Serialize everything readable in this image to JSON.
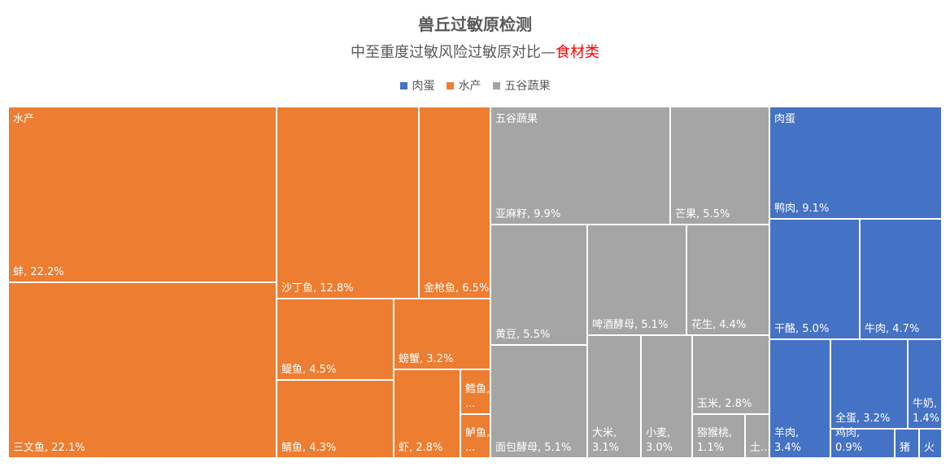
{
  "chart_data": {
    "type": "treemap",
    "title": "兽丘过敏原检测",
    "subtitle_main": "中至重度过敏风险过敏原对比—",
    "subtitle_accent": "食材类",
    "legend": [
      "肉蛋",
      "水产",
      "五谷蔬果"
    ],
    "legend_position": "top-center",
    "colors": {
      "肉蛋": "#4472C4",
      "水产": "#ED7D31",
      "五谷蔬果": "#A5A5A5"
    },
    "groups": [
      {
        "name": "水产",
        "items": [
          {
            "name": "蚌",
            "value": 22.2,
            "label": "蚌, 22.2%"
          },
          {
            "name": "三文鱼",
            "value": 22.1,
            "label": "三文鱼, 22.1%"
          },
          {
            "name": "沙丁鱼",
            "value": 12.8,
            "label": "沙丁鱼, 12.8%"
          },
          {
            "name": "金枪鱼",
            "value": 6.5,
            "label": "金枪鱼, 6.5%"
          },
          {
            "name": "鳀鱼",
            "value": 4.5,
            "label": "鳀鱼, 4.5%"
          },
          {
            "name": "鲭鱼",
            "value": 4.3,
            "label": "鲭鱼, 4.3%"
          },
          {
            "name": "螃蟹",
            "value": 3.2,
            "label": "螃蟹, 3.2%"
          },
          {
            "name": "虾",
            "value": 2.8,
            "label": "虾, 2.8%"
          },
          {
            "name": "鳕鱼",
            "value": null,
            "label": "鳕鱼,..."
          },
          {
            "name": "鲈鱼",
            "value": null,
            "label": "鲈鱼,..."
          }
        ]
      },
      {
        "name": "五谷蔬果",
        "items": [
          {
            "name": "亚麻籽",
            "value": 9.9,
            "label": "亚麻籽, 9.9%"
          },
          {
            "name": "芒果",
            "value": 5.5,
            "label": "芒果, 5.5%"
          },
          {
            "name": "黄豆",
            "value": 5.5,
            "label": "黄豆, 5.5%"
          },
          {
            "name": "啤酒酵母",
            "value": 5.1,
            "label": "啤酒酵母, 5.1%"
          },
          {
            "name": "花生",
            "value": 4.4,
            "label": "花生, 4.4%"
          },
          {
            "name": "面包酵母",
            "value": 5.1,
            "label": "面包酵母, 5.1%"
          },
          {
            "name": "大米",
            "value": 3.1,
            "label": "大米, 3.1%"
          },
          {
            "name": "小麦",
            "value": 3.0,
            "label": "小麦, 3.0%"
          },
          {
            "name": "玉米",
            "value": 2.8,
            "label": "玉米, 2.8%"
          },
          {
            "name": "猕猴桃",
            "value": 1.1,
            "label": "猕猴桃, 1.1%"
          },
          {
            "name": "土...",
            "value": null,
            "label": "土..."
          }
        ]
      },
      {
        "name": "肉蛋",
        "items": [
          {
            "name": "鸭肉",
            "value": 9.1,
            "label": "鸭肉, 9.1%"
          },
          {
            "name": "干酪",
            "value": 5.0,
            "label": "干酪, 5.0%"
          },
          {
            "name": "牛肉",
            "value": 4.7,
            "label": "牛肉, 4.7%"
          },
          {
            "name": "羊肉",
            "value": 3.4,
            "label": "羊肉, 3.4%"
          },
          {
            "name": "全蛋",
            "value": 3.2,
            "label": "全蛋, 3.2%"
          },
          {
            "name": "牛奶",
            "value": 1.4,
            "label": "牛奶, 1.4%"
          },
          {
            "name": "鸡肉",
            "value": 0.9,
            "label": "鸡肉, 0.9%"
          },
          {
            "name": "猪",
            "value": null,
            "label": "猪"
          },
          {
            "name": "火",
            "value": null,
            "label": "火"
          }
        ]
      }
    ]
  }
}
